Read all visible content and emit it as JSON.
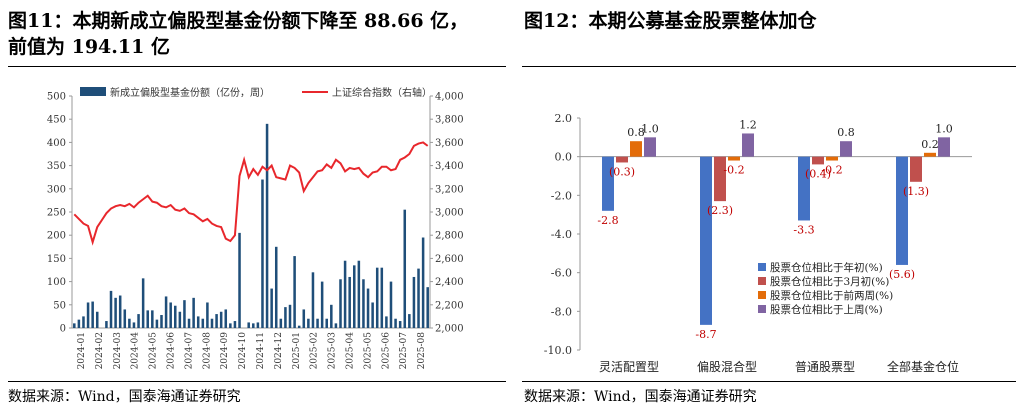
{
  "left": {
    "title_line1": "图11：本期新成立偏股型基金份额下降至 88.66 亿，",
    "title_line2": "前值为 194.11 亿",
    "source": "数据来源：Wind，国泰海通证券研究"
  },
  "right": {
    "title": "图12：本期公募基金股票整体加仓",
    "source": "数据来源：Wind，国泰海通证券研究"
  },
  "chart_data": [
    {
      "type": "bar",
      "title": "",
      "legend": {
        "placement": "top"
      },
      "y_left": {
        "min": 0,
        "max": 500,
        "ticks": [
          "0",
          "50",
          "100",
          "150",
          "200",
          "250",
          "300",
          "350",
          "400",
          "450",
          "500"
        ]
      },
      "y_right": {
        "min": 2000,
        "max": 4000,
        "ticks": [
          "2,000",
          "2,200",
          "2,400",
          "2,600",
          "2,800",
          "3,000",
          "3,200",
          "3,400",
          "3,600",
          "3,800",
          "4,000"
        ]
      },
      "x_tick_labels": [
        "2024-01",
        "2024-02",
        "2024-03",
        "2024-04",
        "2024-05",
        "2024-06",
        "2024-07",
        "2024-08",
        "2024-09",
        "2024-10",
        "2024-11",
        "2024-12",
        "2025-01",
        "2025-02",
        "2025-03",
        "2025-04",
        "2025-05",
        "2025-06",
        "2025-07",
        "2025-08"
      ],
      "series": [
        {
          "name": "新成立偏股型基金份额（亿份，周）",
          "axis": "left",
          "color": "#1f4e79",
          "values": [
            10,
            18,
            25,
            55,
            57,
            35,
            0,
            15,
            80,
            65,
            70,
            40,
            20,
            12,
            30,
            107,
            38,
            38,
            18,
            28,
            68,
            55,
            48,
            35,
            60,
            20,
            65,
            25,
            20,
            55,
            20,
            30,
            35,
            40,
            10,
            15,
            205,
            0,
            12,
            10,
            12,
            320,
            440,
            85,
            175,
            20,
            45,
            50,
            155,
            5,
            40,
            20,
            120,
            20,
            100,
            20,
            50,
            10,
            105,
            145,
            110,
            135,
            145,
            105,
            85,
            55,
            130,
            130,
            25,
            100,
            20,
            15,
            255,
            30,
            110,
            128,
            195,
            88
          ],
          "last_value": 88.66,
          "previous_value": 194.11
        },
        {
          "name": "上证综合指数（右轴）",
          "axis": "right",
          "type": "line",
          "color": "#e8272c",
          "values": [
            2980,
            2940,
            2900,
            2880,
            2740,
            2870,
            2930,
            2990,
            3030,
            3050,
            3060,
            3050,
            3070,
            3040,
            3080,
            3110,
            3140,
            3090,
            3080,
            3050,
            3040,
            3060,
            3020,
            3010,
            3030,
            2990,
            2980,
            2950,
            2920,
            2940,
            2900,
            2880,
            2870,
            2770,
            2750,
            2800,
            3310,
            3450,
            3300,
            3370,
            3320,
            3390,
            3360,
            3400,
            3300,
            3290,
            3280,
            3400,
            3380,
            3340,
            3180,
            3250,
            3300,
            3350,
            3360,
            3410,
            3380,
            3450,
            3420,
            3350,
            3380,
            3370,
            3380,
            3330,
            3300,
            3340,
            3350,
            3390,
            3390,
            3360,
            3370,
            3450,
            3470,
            3500,
            3570,
            3590,
            3600,
            3570
          ]
        }
      ]
    },
    {
      "type": "bar",
      "title": "",
      "legend": {
        "placement": "lower-right, inside"
      },
      "ylim": [
        -10,
        2
      ],
      "y_ticks": [
        "2.0",
        "0.0",
        "-2.0",
        "-4.0",
        "-6.0",
        "-8.0",
        "-10.0"
      ],
      "categories": [
        "灵活配置型",
        "偏股混合型",
        "普通股票型",
        "全部基金仓位"
      ],
      "series": [
        {
          "name": "股票仓位相比于年初(%)",
          "color": "#4472c4",
          "values": [
            -2.8,
            -8.7,
            -3.3,
            -5.6
          ],
          "labels": [
            "-2.8",
            "-8.7",
            "-3.3",
            "(5.6)"
          ]
        },
        {
          "name": "股票仓位相比于3月初(%)",
          "color": "#c0504d",
          "values": [
            -0.3,
            -2.3,
            -0.4,
            -1.3
          ],
          "labels": [
            "(0.3)",
            "(2.3)",
            "(0.4)",
            "(1.3)"
          ]
        },
        {
          "name": "股票仓位相比于前两周(%)",
          "color": "#e36c09",
          "values": [
            0.8,
            -0.2,
            -0.2,
            0.2
          ],
          "labels": [
            "0.8",
            "-0.2",
            "-0.2",
            "0.2"
          ]
        },
        {
          "name": "股票仓位相比于上周(%)",
          "color": "#8064a2",
          "values": [
            1.0,
            1.2,
            0.8,
            1.0
          ],
          "labels": [
            "1.0",
            "1.2",
            "0.8",
            "1.0"
          ]
        }
      ]
    }
  ]
}
